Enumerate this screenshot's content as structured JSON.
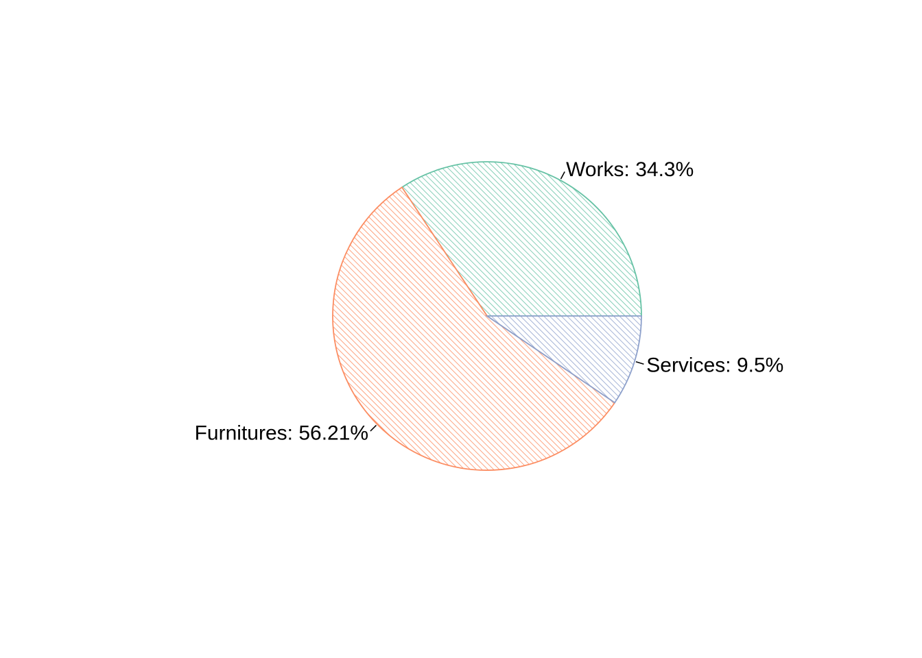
{
  "chart_data": {
    "type": "pie",
    "title": "",
    "start_angle_deg": 0,
    "direction": "counterclockwise",
    "fill_style": "diagonal-hatch",
    "slices": [
      {
        "name": "Works",
        "value": 34.3,
        "label": "Works: 34.3%",
        "color": "#66c2a5"
      },
      {
        "name": "Furnitures",
        "value": 56.21,
        "label": "Furnitures: 56.21%",
        "color": "#fc8d62"
      },
      {
        "name": "Services",
        "value": 9.5,
        "label": "Services: 9.5%",
        "color": "#8da0cb"
      }
    ]
  }
}
